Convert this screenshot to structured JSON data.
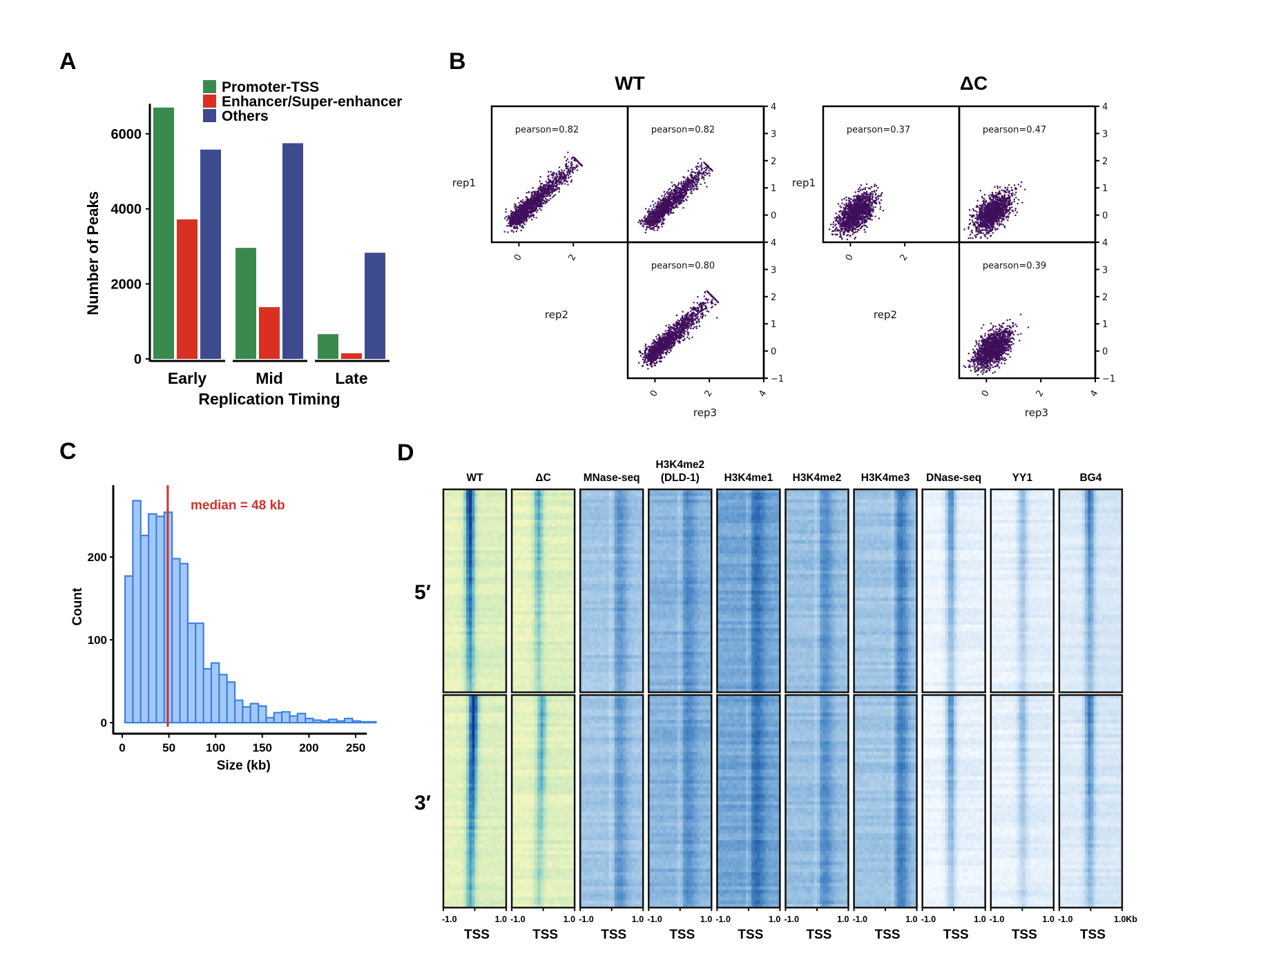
{
  "figure": {
    "panel_labels": [
      "A",
      "B",
      "C",
      "D"
    ]
  },
  "chart_data": [
    {
      "panel": "A",
      "type": "bar",
      "title": "",
      "xlabel": "Replication Timing",
      "ylabel": "Number of Peaks",
      "categories": [
        "Early",
        "Mid",
        "Late"
      ],
      "ylim": [
        0,
        6800
      ],
      "yticks": [
        0,
        2000,
        4000,
        6000
      ],
      "legend_position": "top-right",
      "series": [
        {
          "name": "Promoter-TSS",
          "color": "#3b8a4d",
          "values": [
            6700,
            2960,
            660
          ]
        },
        {
          "name": "Enhancer/Super-enhancer",
          "color": "#d93022",
          "values": [
            3720,
            1380,
            150
          ]
        },
        {
          "name": "Others",
          "color": "#3e4a8e",
          "values": [
            5580,
            5750,
            2830
          ]
        }
      ]
    },
    {
      "panel": "B",
      "type": "scatter",
      "point_color": "#3f0f5c",
      "axis_range": [
        -1,
        4
      ],
      "ticks_x": [
        "0",
        "2",
        "4"
      ],
      "ticks_y": [
        "−1",
        "0",
        "1",
        "2",
        "3",
        "4"
      ],
      "row_labels": [
        "rep1",
        "rep2"
      ],
      "col_label": "rep3",
      "groups": [
        {
          "title": "WT",
          "cells": [
            {
              "pair": "rep1 vs rep2",
              "pearson_label": "pearson=0.82",
              "r": 0.82,
              "spread": 2.3
            },
            {
              "pair": "rep1 vs rep3",
              "pearson_label": "pearson=0.82",
              "r": 0.82,
              "spread": 2.1
            },
            {
              "pair": "rep2 vs rep3",
              "pearson_label": "pearson=0.80",
              "r": 0.8,
              "spread": 2.3
            }
          ]
        },
        {
          "title": "ΔC",
          "cells": [
            {
              "pair": "rep1 vs rep2",
              "pearson_label": "pearson=0.37",
              "r": 0.37,
              "spread": 1.2
            },
            {
              "pair": "rep1 vs rep3",
              "pearson_label": "pearson=0.47",
              "r": 0.47,
              "spread": 1.2
            },
            {
              "pair": "rep2 vs rep3",
              "pearson_label": "pearson=0.39",
              "r": 0.39,
              "spread": 1.2
            }
          ]
        }
      ]
    },
    {
      "panel": "C",
      "type": "bar",
      "subtype": "histogram",
      "xlabel": "Size (kb)",
      "ylabel": "Count",
      "xlim": [
        0,
        275
      ],
      "ylim": [
        0,
        280
      ],
      "xticks": [
        0,
        50,
        100,
        150,
        200,
        250
      ],
      "yticks": [
        0,
        100,
        200
      ],
      "bin_start": 3,
      "bin_width": 8.4,
      "values": [
        177,
        268,
        226,
        252,
        249,
        254,
        198,
        192,
        120,
        120,
        65,
        72,
        58,
        49,
        27,
        19,
        23,
        20,
        6,
        12,
        13,
        8,
        11,
        5,
        3,
        2,
        4,
        2,
        5,
        2,
        1,
        1
      ],
      "fill": "#a4c8f5",
      "stroke": "#3b82e0",
      "median": 48,
      "median_label": "median = 48 kb",
      "median_color": "#d4322c"
    },
    {
      "panel": "D",
      "type": "heatmap",
      "row_groups": [
        "5′",
        "3′"
      ],
      "x_range_label_left": "-1.0",
      "x_range_label_right": "1.0",
      "x_range_label_last": "1.0Kb",
      "center_label": "TSS",
      "tracks": [
        {
          "name": "WT",
          "palette": "ylgnbu",
          "peak_pos": 0.42,
          "intensity": 1.0,
          "base": 0.05,
          "tilt5": 0.0,
          "tilt3": 0.12
        },
        {
          "name": "ΔC",
          "palette": "ylgnbu",
          "peak_pos": 0.42,
          "intensity": 0.55,
          "base": 0.04,
          "tilt5": 0.0,
          "tilt3": 0.12
        },
        {
          "name": "MNase-seq",
          "palette": "blues",
          "peak_pos": 0.5,
          "intensity": 0.25,
          "base": 0.45,
          "dip": true
        },
        {
          "name": "H3K4me2\n(DLD-1)",
          "palette": "blues",
          "peak_pos": 0.5,
          "intensity": 0.2,
          "base": 0.55,
          "dip": true
        },
        {
          "name": "H3K4me1",
          "palette": "blues",
          "peak_pos": 0.5,
          "intensity": 0.25,
          "base": 0.62,
          "dip": true
        },
        {
          "name": "H3K4me2",
          "palette": "blues",
          "peak_pos": 0.5,
          "intensity": 0.25,
          "base": 0.48,
          "dip": true
        },
        {
          "name": "H3K4me3",
          "palette": "blues",
          "peak_pos": 0.62,
          "intensity": 0.35,
          "base": 0.45,
          "dip": true
        },
        {
          "name": "DNase-seq",
          "palette": "blues",
          "peak_pos": 0.45,
          "intensity": 0.7,
          "base": 0.05
        },
        {
          "name": "YY1",
          "palette": "blues",
          "peak_pos": 0.5,
          "intensity": 0.45,
          "base": 0.08
        },
        {
          "name": "BG4",
          "palette": "blues",
          "peak_pos": 0.48,
          "intensity": 0.7,
          "base": 0.15
        }
      ]
    }
  ]
}
